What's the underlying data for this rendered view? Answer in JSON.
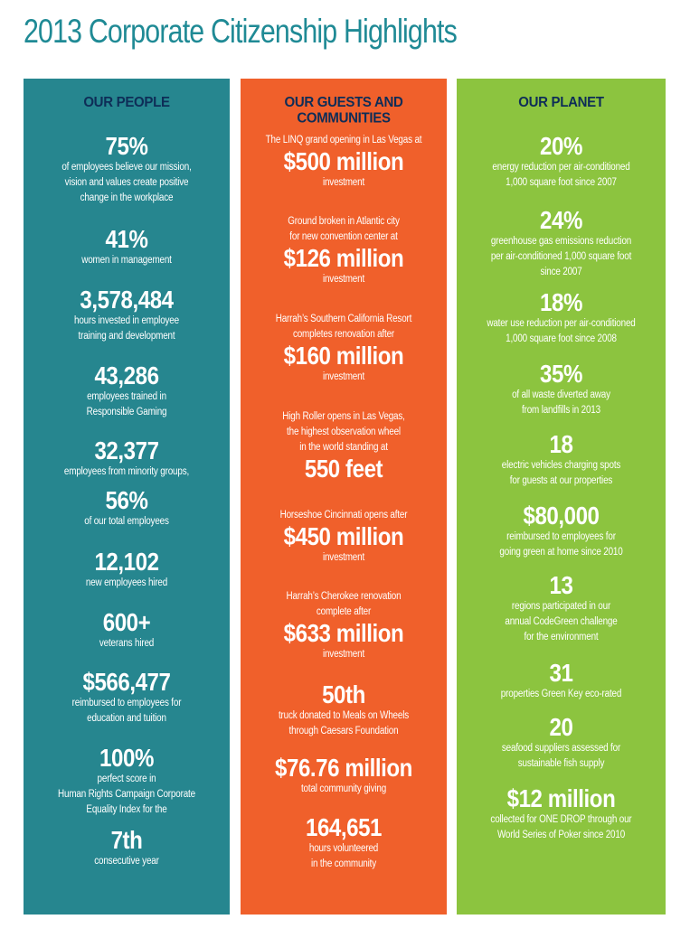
{
  "title": "2013 Corporate Citizenship Highlights",
  "colors": {
    "title": "#1f8a95",
    "people": "#26868f",
    "guests": "#f0602b",
    "planet": "#8cc43f",
    "header_text": "#0e2d57"
  },
  "people": {
    "heading": "OUR PEOPLE",
    "items": [
      {
        "value": "75%",
        "desc": "of employees believe our mission,\nvision and values create positive\nchange in the workplace"
      },
      {
        "value": "41%",
        "desc": "women in management"
      },
      {
        "value": "3,578,484",
        "desc": "hours invested in employee\ntraining and development"
      },
      {
        "value": "43,286",
        "desc": "employees trained in\nResponsible Gaming"
      },
      {
        "value": "32,377",
        "desc": "employees from minority groups,"
      },
      {
        "value": "56%",
        "desc": "of our total employees"
      },
      {
        "value": "12,102",
        "desc": "new employees hired"
      },
      {
        "value": "600+",
        "desc": "veterans hired"
      },
      {
        "value": "$566,477",
        "desc": "reimbursed to employees for\neducation and tuition"
      },
      {
        "value": "100%",
        "desc": "perfect score in\nHuman Rights Campaign Corporate\nEquality Index for the"
      },
      {
        "value": "7th",
        "desc": "consecutive year"
      }
    ]
  },
  "guests": {
    "heading": "OUR GUESTS AND COMMUNITIES",
    "items": [
      {
        "pre": "The LINQ grand opening in Las Vegas at",
        "value": "$500 million",
        "desc": "investment"
      },
      {
        "pre": "Ground broken in Atlantic city\nfor new convention center at",
        "value": "$126 million",
        "desc": "investment"
      },
      {
        "pre": "Harrah’s Southern California Resort\ncompletes renovation after",
        "value": "$160 million",
        "desc": "investment"
      },
      {
        "pre": "High Roller opens in Las Vegas,\nthe highest observation wheel\nin the world standing at",
        "value": "550 feet",
        "desc": ""
      },
      {
        "pre": "Horseshoe Cincinnati opens after",
        "value": "$450 million",
        "desc": "investment"
      },
      {
        "pre": "Harrah’s Cherokee renovation\ncomplete after",
        "value": "$633 million",
        "desc": "investment"
      },
      {
        "pre": "",
        "value": "50th",
        "desc": "truck donated to Meals on Wheels\nthrough Caesars Foundation"
      },
      {
        "pre": "",
        "value": "$76.76 million",
        "desc": "total community giving"
      },
      {
        "pre": "",
        "value": "164,651",
        "desc": "hours volunteered\nin the community"
      }
    ]
  },
  "planet": {
    "heading": "OUR PLANET",
    "items": [
      {
        "value": "20%",
        "desc": "energy reduction per air-conditioned\n1,000 square foot since 2007"
      },
      {
        "value": "24%",
        "desc": "greenhouse gas emissions reduction\nper air-conditioned 1,000 square foot\nsince 2007"
      },
      {
        "value": "18%",
        "desc": "water use reduction per air-conditioned\n1,000 square foot since 2008"
      },
      {
        "value": "35%",
        "desc": "of all waste diverted away\nfrom landfills in 2013"
      },
      {
        "value": "18",
        "desc": "electric  vehicles charging spots\nfor guests at our properties"
      },
      {
        "value": "$80,000",
        "desc": "reimbursed to employees for\ngoing green at home since 2010"
      },
      {
        "value": "13",
        "desc": "regions participated in our\nannual CodeGreen challenge\nfor the environment"
      },
      {
        "value": "31",
        "desc": "properties Green Key eco-rated"
      },
      {
        "value": "20",
        "desc": "seafood suppliers assessed for\nsustainable fish supply"
      },
      {
        "value": "$12 million",
        "desc": "collected for ONE DROP through our\nWorld Series of Poker since 2010"
      }
    ]
  }
}
